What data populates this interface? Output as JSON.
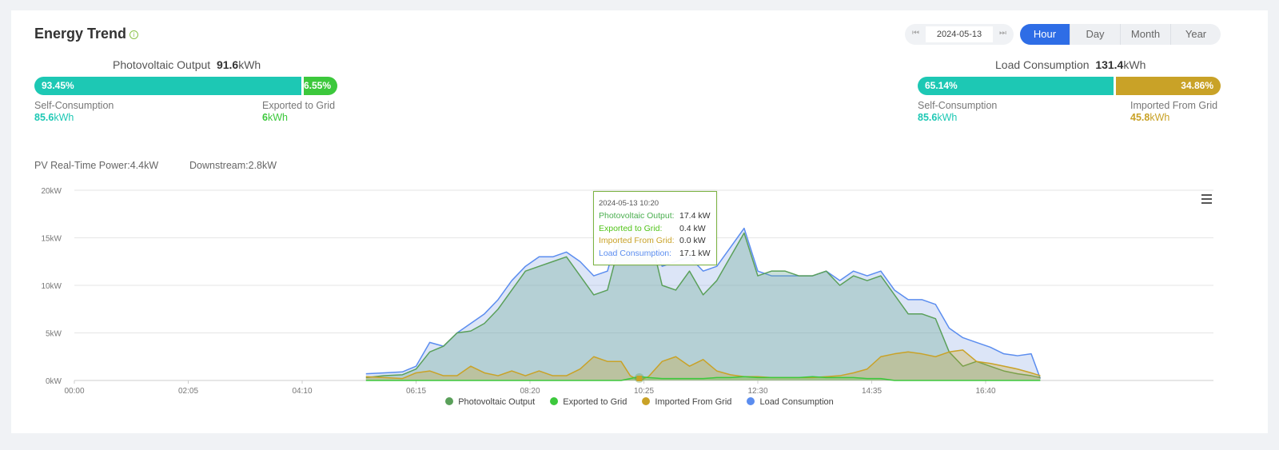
{
  "header": {
    "title": "Energy Trend",
    "date": "2024-05-13",
    "tabs": [
      "Hour",
      "Day",
      "Month",
      "Year"
    ],
    "active_tab": "Hour"
  },
  "pv_summary": {
    "label": "Photovoltaic Output",
    "value": "91.6",
    "unit": "kWh",
    "self_pct": "93.45%",
    "export_pct": "6.55%",
    "self_fraction": 0.9345,
    "self_label": "Self-Consumption",
    "self_value": "85.6",
    "self_unit": "kWh",
    "export_label": "Exported to Grid",
    "export_value": "6",
    "export_unit": "kWh"
  },
  "load_summary": {
    "label": "Load Consumption",
    "value": "131.4",
    "unit": "kWh",
    "self_pct": "65.14%",
    "import_pct": "34.86%",
    "self_fraction": 0.6514,
    "self_label": "Self-Consumption",
    "self_value": "85.6",
    "self_unit": "kWh",
    "import_label": "Imported From Grid",
    "import_value": "45.8",
    "import_unit": "kWh"
  },
  "realtime": {
    "pv": "PV Real-Time Power:4.4kW",
    "downstream": "Downstream:2.8kW"
  },
  "tooltip": {
    "time": "2024-05-13 10:20",
    "rows": [
      {
        "label": "Photovoltaic Output:",
        "value": "17.4 kW",
        "color": "#4caf50"
      },
      {
        "label": "Exported to Grid:",
        "value": "0.4 kW",
        "color": "#52c41a"
      },
      {
        "label": "Imported From Grid:",
        "value": "0.0 kW",
        "color": "#c9a227"
      },
      {
        "label": "Load Consumption:",
        "value": "17.1 kW",
        "color": "#5b8def"
      }
    ]
  },
  "colors": {
    "accent": "#2e6de6",
    "teal": "#1dc8b4",
    "green": "#3cc83c",
    "gold": "#c9a227",
    "pv": "#5aa05a",
    "load": "#5b8def"
  },
  "chart_data": {
    "type": "area",
    "x_unit": "time",
    "x_ticks": [
      "00:00",
      "02:05",
      "04:10",
      "06:15",
      "08:20",
      "10:25",
      "12:30",
      "14:35",
      "16:40"
    ],
    "y_ticks": [
      "0kW",
      "5kW",
      "10kW",
      "15kW",
      "20kW"
    ],
    "ylim": [
      0,
      20
    ],
    "legend": "bottom",
    "x": [
      "05:20",
      "05:40",
      "06:00",
      "06:15",
      "06:30",
      "06:45",
      "07:00",
      "07:15",
      "07:30",
      "07:45",
      "08:00",
      "08:15",
      "08:30",
      "08:45",
      "09:00",
      "09:15",
      "09:30",
      "09:45",
      "10:00",
      "10:10",
      "10:20",
      "10:30",
      "10:45",
      "11:00",
      "11:15",
      "11:30",
      "11:45",
      "12:00",
      "12:15",
      "12:30",
      "12:45",
      "13:00",
      "13:15",
      "13:30",
      "13:45",
      "14:00",
      "14:15",
      "14:30",
      "14:45",
      "15:00",
      "15:15",
      "15:30",
      "15:45",
      "16:00",
      "16:15",
      "16:30",
      "16:45",
      "17:00",
      "17:15",
      "17:30",
      "17:40"
    ],
    "series": [
      {
        "name": "Photovoltaic Output",
        "color": "#5aa05a",
        "values": [
          0.3,
          0.5,
          0.6,
          1.2,
          3.0,
          3.6,
          5.0,
          5.2,
          6.0,
          7.5,
          9.5,
          11.5,
          12.0,
          12.5,
          13.0,
          11.0,
          9.0,
          9.5,
          15.0,
          16.5,
          17.4,
          16.0,
          10.0,
          9.5,
          11.5,
          9.0,
          10.5,
          13.0,
          15.5,
          11.0,
          11.5,
          11.5,
          11.0,
          11.0,
          11.5,
          10.0,
          11.0,
          10.5,
          11.0,
          9.0,
          7.0,
          7.0,
          6.5,
          3.0,
          1.5,
          2.0,
          1.5,
          1.0,
          0.7,
          0.5,
          0.3
        ]
      },
      {
        "name": "Exported to Grid",
        "color": "#3cc83c",
        "values": [
          0,
          0,
          0,
          0,
          0,
          0,
          0,
          0,
          0,
          0,
          0,
          0,
          0,
          0,
          0,
          0,
          0,
          0,
          0,
          0.2,
          0.4,
          0.3,
          0.2,
          0.2,
          0.2,
          0.2,
          0.3,
          0.3,
          0.4,
          0.3,
          0.3,
          0.3,
          0.3,
          0.4,
          0.3,
          0.3,
          0.3,
          0.2,
          0.2,
          0,
          0,
          0,
          0,
          0,
          0,
          0,
          0,
          0,
          0,
          0,
          0
        ]
      },
      {
        "name": "Imported From Grid",
        "color": "#c9a227",
        "values": [
          0.4,
          0.3,
          0.2,
          0.8,
          1.0,
          0.5,
          0.5,
          1.5,
          0.8,
          0.5,
          1.0,
          0.5,
          1.0,
          0.5,
          0.5,
          1.2,
          2.5,
          2.0,
          2.0,
          0.5,
          0.0,
          0.4,
          2.0,
          2.5,
          1.5,
          2.2,
          1.0,
          0.6,
          0.4,
          0.4,
          0.3,
          0.3,
          0.3,
          0.3,
          0.4,
          0.5,
          0.8,
          1.2,
          2.5,
          2.8,
          3.0,
          2.8,
          2.5,
          3.0,
          3.2,
          2.0,
          1.8,
          1.5,
          1.2,
          0.8,
          0.5
        ]
      },
      {
        "name": "Load Consumption",
        "color": "#5b8def",
        "values": [
          0.7,
          0.8,
          0.9,
          1.5,
          4.0,
          3.6,
          5.0,
          6.0,
          7.0,
          8.5,
          10.5,
          12.0,
          13.0,
          13.0,
          13.5,
          12.5,
          11.0,
          11.5,
          16.5,
          17.0,
          17.1,
          16.5,
          12.0,
          12.5,
          13.0,
          11.5,
          12.0,
          14.0,
          16.0,
          11.5,
          11.0,
          11.0,
          11.0,
          11.0,
          11.5,
          10.5,
          11.5,
          11.0,
          11.5,
          9.5,
          8.5,
          8.5,
          8.0,
          5.5,
          4.5,
          4.0,
          3.5,
          2.8,
          2.6,
          2.8,
          0.2
        ]
      }
    ]
  }
}
